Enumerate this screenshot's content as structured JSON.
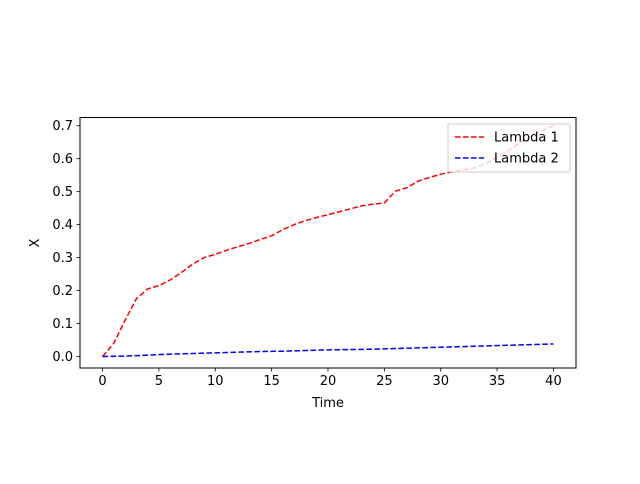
{
  "chart_data": {
    "type": "line",
    "xlabel": "Time",
    "ylabel": "X",
    "xlim": [
      -2,
      42
    ],
    "ylim": [
      -0.035,
      0.725
    ],
    "xticks": [
      0,
      5,
      10,
      15,
      20,
      25,
      30,
      35,
      40
    ],
    "yticks": [
      0.0,
      0.1,
      0.2,
      0.3,
      0.4,
      0.5,
      0.6,
      0.7
    ],
    "xtick_labels": [
      "0",
      "5",
      "10",
      "15",
      "20",
      "25",
      "30",
      "35",
      "40"
    ],
    "ytick_labels": [
      "0.0",
      "0.1",
      "0.2",
      "0.3",
      "0.4",
      "0.5",
      "0.6",
      "0.7"
    ],
    "grid": false,
    "legend_position": "top-right",
    "series": [
      {
        "name": "Lambda 1",
        "color": "#ff0000",
        "linestyle": "dashed",
        "x": [
          0,
          1,
          2,
          3,
          4,
          5,
          6,
          7,
          8,
          9,
          10,
          11,
          12,
          13,
          14,
          15,
          16,
          17,
          18,
          19,
          20,
          21,
          22,
          23,
          24,
          25,
          26,
          27,
          28,
          29,
          30,
          31,
          32,
          33,
          34,
          35,
          36,
          37,
          38,
          39,
          40
        ],
        "y": [
          0.0,
          0.04,
          0.11,
          0.175,
          0.205,
          0.215,
          0.232,
          0.255,
          0.28,
          0.3,
          0.31,
          0.322,
          0.333,
          0.343,
          0.355,
          0.366,
          0.385,
          0.4,
          0.412,
          0.422,
          0.43,
          0.439,
          0.448,
          0.457,
          0.462,
          0.466,
          0.502,
          0.512,
          0.532,
          0.543,
          0.553,
          0.56,
          0.566,
          0.572,
          0.585,
          0.605,
          0.625,
          0.648,
          0.668,
          0.685,
          0.7
        ]
      },
      {
        "name": "Lambda 2",
        "color": "#0000ff",
        "linestyle": "dashed",
        "x": [
          0,
          2,
          4,
          6,
          8,
          10,
          12,
          14,
          16,
          18,
          20,
          22,
          24,
          26,
          28,
          30,
          32,
          34,
          36,
          38,
          40
        ],
        "y": [
          0.0,
          0.001,
          0.004,
          0.007,
          0.009,
          0.011,
          0.013,
          0.015,
          0.016,
          0.018,
          0.02,
          0.021,
          0.022,
          0.024,
          0.026,
          0.028,
          0.03,
          0.032,
          0.034,
          0.036,
          0.038
        ]
      }
    ]
  }
}
